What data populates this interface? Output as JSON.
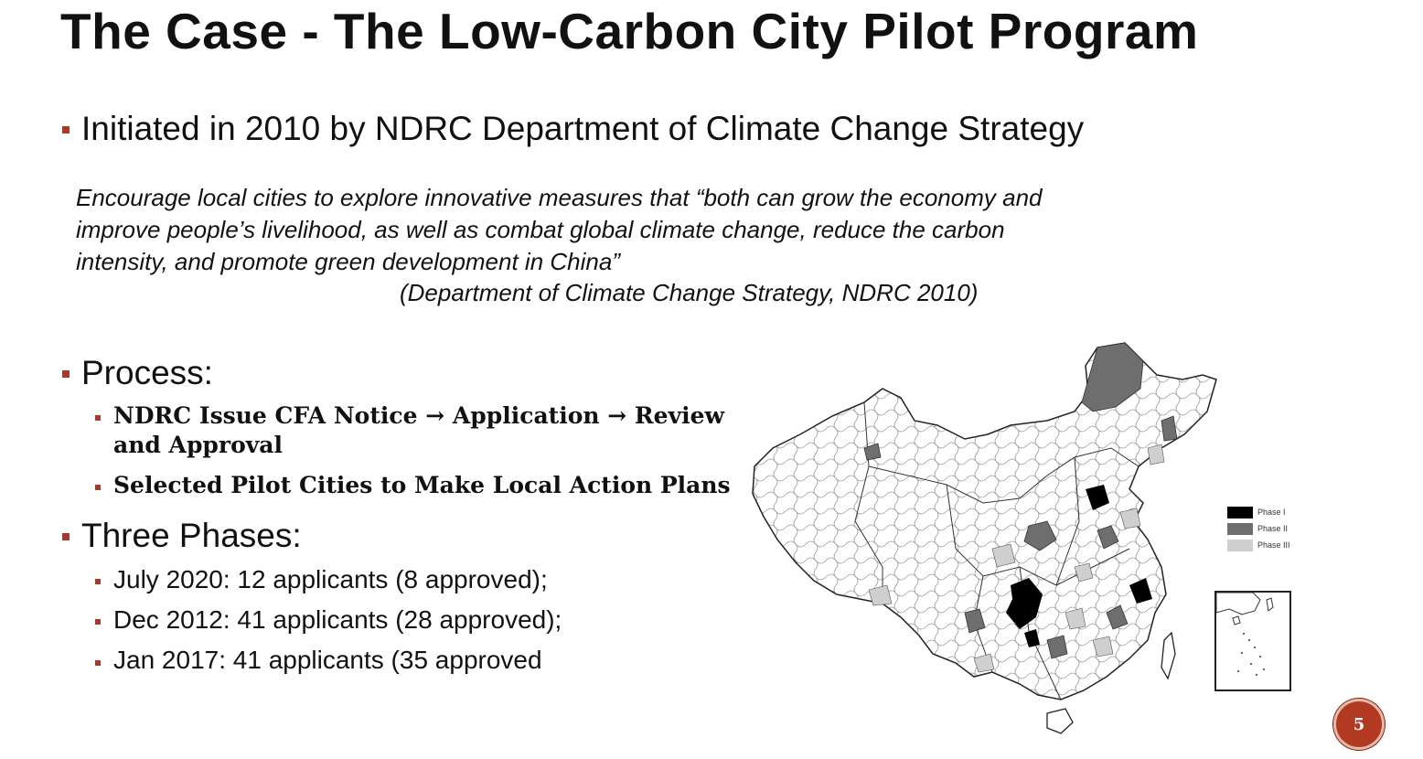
{
  "slide": {
    "title": "The Case - The Low-Carbon City Pilot Program",
    "page_number": "5"
  },
  "bullets": {
    "initiated": "Initiated in 2010 by NDRC Department of Climate Change Strategy",
    "quote_lines": [
      "Encourage local cities to explore innovative measures that “both can grow the economy and",
      "improve people’s livelihood, as well as combat global climate change, reduce the carbon",
      "intensity, and promote green development in China”"
    ],
    "quote_source": "(Department of Climate Change Strategy, NDRC 2010)",
    "process": {
      "heading": "Process:",
      "items": [
        "NDRC Issue CFA Notice → Application → Review",
        "and Approval",
        "Selected Pilot Cities to Make Local Action Plans"
      ]
    },
    "phases": {
      "heading": "Three Phases:",
      "items": [
        "July 2020: 12 applicants (8 approved);",
        "Dec 2012: 41 applicants (28 approved);",
        "Jan 2017:  41 applicants (35 approved"
      ]
    }
  },
  "map": {
    "legend": [
      {
        "label": "Phase I",
        "color": "#000000"
      },
      {
        "label": "Phase II",
        "color": "#6e6e6e"
      },
      {
        "label": "Phase III",
        "color": "#cfcfcf"
      }
    ]
  },
  "colors": {
    "bullet": "#a33a2a",
    "page_badge": "#b33a22"
  }
}
